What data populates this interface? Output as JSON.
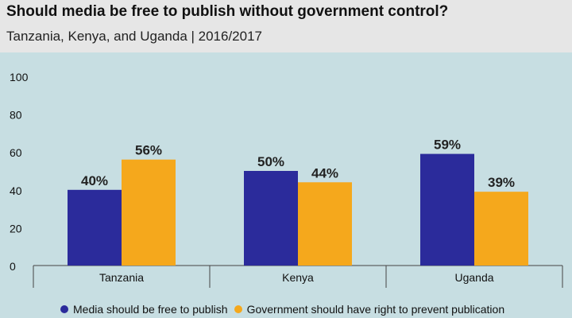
{
  "colors": {
    "background": "#c7dee2",
    "header_bg": "#e6e6e6",
    "series1": "#2b2b9b",
    "series2": "#f5a81c",
    "axis": "#444444"
  },
  "chart_data": {
    "type": "bar",
    "title": "Should media be free to publish without government control?",
    "subtitle": "Tanzania, Kenya, and Uganda  |  2016/2017",
    "categories": [
      "Tanzania",
      "Kenya",
      "Uganda"
    ],
    "series": [
      {
        "name": "Media should be free to publish",
        "values": [
          40,
          50,
          59
        ],
        "labels": [
          "40%",
          "50%",
          "59%"
        ]
      },
      {
        "name": "Government should have right to prevent publication",
        "values": [
          56,
          44,
          39
        ],
        "labels": [
          "56%",
          "44%",
          "39%"
        ]
      }
    ],
    "yticks": [
      "0",
      "20",
      "40",
      "60",
      "80",
      "100"
    ],
    "ylim": [
      0,
      100
    ],
    "xlabel": "",
    "ylabel": "",
    "legend_position": "bottom"
  }
}
